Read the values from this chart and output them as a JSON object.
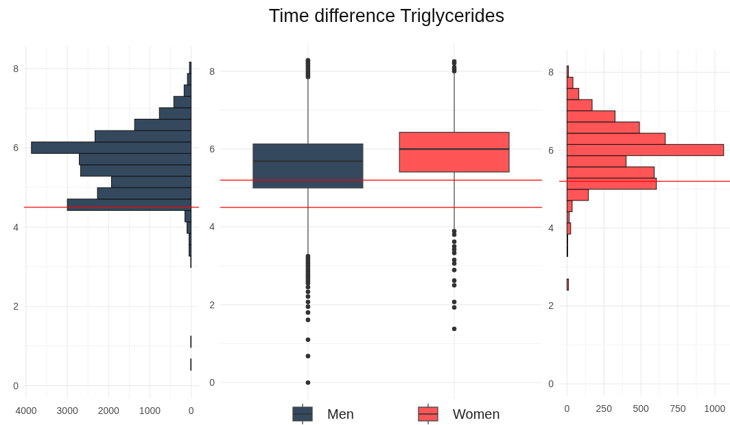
{
  "chart_data": [
    {
      "type": "histogram",
      "orientation": "horizontal",
      "color": "#34495e",
      "bins": [
        0.1,
        0.388,
        0.676,
        0.964,
        1.252,
        1.54,
        1.828,
        2.116,
        2.404,
        2.692,
        2.98,
        3.268,
        3.556,
        3.844,
        4.132,
        4.42,
        4.708,
        4.996,
        5.284,
        5.572,
        5.86,
        6.148,
        6.436,
        6.724,
        7.012,
        7.3,
        7.588,
        7.876,
        8.164
      ],
      "values": [
        0,
        10,
        0,
        10,
        0,
        0,
        0,
        0,
        0,
        0,
        10,
        50,
        50,
        100,
        150,
        3000,
        2270,
        1930,
        2680,
        2710,
        3870,
        2330,
        1370,
        770,
        420,
        170,
        90,
        40
      ],
      "xlim": [
        4050,
        -190
      ],
      "xticks": [
        4000,
        {
          "value": 3500,
          "label": null
        },
        3000,
        {
          "value": 2500,
          "label": null
        },
        2000,
        {
          "value": 1500,
          "label": null
        },
        1000,
        {
          "value": 500,
          "label": null
        },
        0
      ],
      "ylim": [
        -0.3,
        8.57
      ],
      "yticks": [
        0,
        {
          "value": 1,
          "label": null
        },
        2,
        {
          "value": 3,
          "label": null
        },
        4,
        {
          "value": 5,
          "label": null
        },
        6,
        {
          "value": 7,
          "label": null
        },
        8
      ],
      "grid": true,
      "ref_lines": [
        {
          "axis": "y",
          "value": 4.5,
          "color": "#ff0000"
        }
      ]
    },
    {
      "type": "box",
      "title": "Time difference Triglycerides",
      "categories": [
        null,
        null
      ],
      "series": [
        {
          "name": "Men",
          "color": "#34495e",
          "boxes": [
            {
              "low": 3.3,
              "q1": 5.0,
              "median": 5.69,
              "q3": 6.13,
              "high": 7.83,
              "outliers": [
                7.85,
                7.9,
                7.95,
                8.0,
                8.05,
                8.1,
                8.15,
                8.2,
                8.25,
                8.28,
                3.25,
                3.2,
                3.15,
                3.1,
                3.05,
                3.0,
                2.95,
                2.9,
                2.85,
                2.8,
                2.75,
                2.7,
                2.65,
                2.6,
                2.55,
                2.45,
                2.33,
                2.21,
                2.07,
                1.95,
                1.8,
                1.61,
                1.1,
                0.68,
                0.0
              ]
            },
            null
          ]
        },
        {
          "name": "Women",
          "color": "#ff5557",
          "boxes": [
            null,
            {
              "low": 3.95,
              "q1": 5.41,
              "median": 6.0,
              "q3": 6.43,
              "high": 7.97,
              "outliers": [
                8.0,
                8.05,
                8.1,
                8.2,
                8.25,
                3.89,
                3.8,
                3.62,
                3.5,
                3.42,
                3.33,
                3.15,
                3.06,
                2.89,
                2.62,
                2.5,
                2.07,
                1.93,
                1.38
              ]
            }
          ]
        }
      ],
      "ylim": [
        -0.42,
        8.7
      ],
      "yticks": [
        0,
        {
          "value": 1,
          "label": null
        },
        2,
        {
          "value": 3,
          "label": null
        },
        4,
        {
          "value": 5,
          "label": null
        },
        6,
        {
          "value": 7,
          "label": null
        },
        8
      ],
      "grid": true,
      "legend": "bottom",
      "ref_lines": [
        {
          "axis": "y",
          "value": 5.2,
          "color": "#ff0000"
        },
        {
          "axis": "y",
          "value": 4.5,
          "color": "#ff0000"
        }
      ]
    },
    {
      "type": "histogram",
      "orientation": "horizontal",
      "color": "#ff5557",
      "bins": [
        0.1,
        0.388,
        0.676,
        0.964,
        1.252,
        1.54,
        1.828,
        2.116,
        2.404,
        2.692,
        2.98,
        3.268,
        3.556,
        3.844,
        4.132,
        4.42,
        4.708,
        4.996,
        5.284,
        5.572,
        5.86,
        6.148,
        6.436,
        6.724,
        7.012,
        7.3,
        7.588,
        7.876,
        8.164
      ],
      "values": [
        0,
        0,
        0,
        0,
        0,
        0,
        0,
        0,
        10,
        0,
        0,
        5,
        5,
        25,
        15,
        35,
        145,
        605,
        590,
        400,
        1060,
        665,
        490,
        325,
        170,
        80,
        40,
        10
      ],
      "xlim": [
        -53,
        1103
      ],
      "xticks": [
        0,
        {
          "value": 125,
          "label": null
        },
        250,
        {
          "value": 375,
          "label": null
        },
        500,
        {
          "value": 625,
          "label": null
        },
        750,
        {
          "value": 875,
          "label": null
        },
        1000
      ],
      "ylim": [
        -0.3,
        8.57
      ],
      "yticks": [
        0,
        {
          "value": 1,
          "label": null
        },
        2,
        {
          "value": 3,
          "label": null
        },
        4,
        {
          "value": 5,
          "label": null
        },
        6,
        {
          "value": 7,
          "label": null
        },
        8
      ],
      "grid": true,
      "ref_lines": [
        {
          "axis": "y",
          "value": 5.2,
          "color": "#ff0000"
        }
      ]
    }
  ]
}
